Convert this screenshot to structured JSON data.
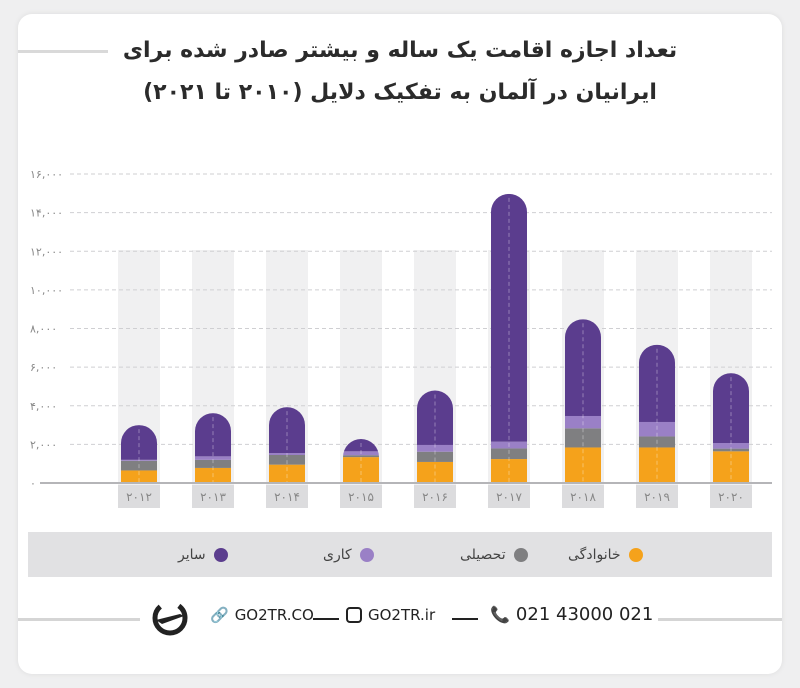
{
  "title_lines": [
    "تعداد اجازه اقامت یک ساله و بیشتر صادر شده برای",
    "ایرانیان در آلمان به تفکیک دلایل (۲۰۱۰ تا ۲۰۲۱)"
  ],
  "chart_data": {
    "type": "bar",
    "stacked": true,
    "title": "تعداد اجازه اقامت یک ساله و بیشتر صادر شده برای ایرانیان در آلمان به تفکیک دلایل (۲۰۱۰ تا ۲۰۲۱)",
    "categories": [
      "۲۰۱۲",
      "۲۰۱۳",
      "۲۰۱۴",
      "۲۰۱۵",
      "۲۰۱۶",
      "۲۰۱۷",
      "۲۰۱۸",
      "۲۰۱۹",
      "۲۰۲۰"
    ],
    "series": [
      {
        "name": "خانوادگی",
        "color": "#f5a21b",
        "values": [
          650,
          780,
          950,
          1340,
          1090,
          1240,
          1840,
          1840,
          1640
        ]
      },
      {
        "name": "تحصیلی",
        "color": "#7f7f81",
        "values": [
          500,
          420,
          500,
          100,
          530,
          550,
          990,
          570,
          140
        ]
      },
      {
        "name": "کاری",
        "color": "#9a80c6",
        "values": [
          50,
          180,
          100,
          200,
          350,
          350,
          640,
          750,
          290
        ]
      },
      {
        "name": "سایر",
        "color": "#5b3d8e",
        "values": [
          1800,
          2240,
          2380,
          640,
          2820,
          12830,
          5010,
          4000,
          3620
        ]
      }
    ],
    "ylim": [
      0,
      16000
    ],
    "yticks": [
      0,
      2000,
      4000,
      6000,
      8000,
      10000,
      12000,
      14000,
      16000
    ],
    "ytick_labels": [
      "۰",
      "۲,۰۰۰",
      "۴,۰۰۰",
      "۶,۰۰۰",
      "۸,۰۰۰",
      "۱۰,۰۰۰",
      "۱۲,۰۰۰",
      "۱۴,۰۰۰",
      "۱۶,۰۰۰"
    ],
    "grid": true,
    "legend_position": "bottom",
    "xlabel": "",
    "ylabel": ""
  },
  "footer": {
    "website": "GO2TR.CO",
    "instagram": "GO2TR.ir",
    "phone": "021 43000 021"
  }
}
